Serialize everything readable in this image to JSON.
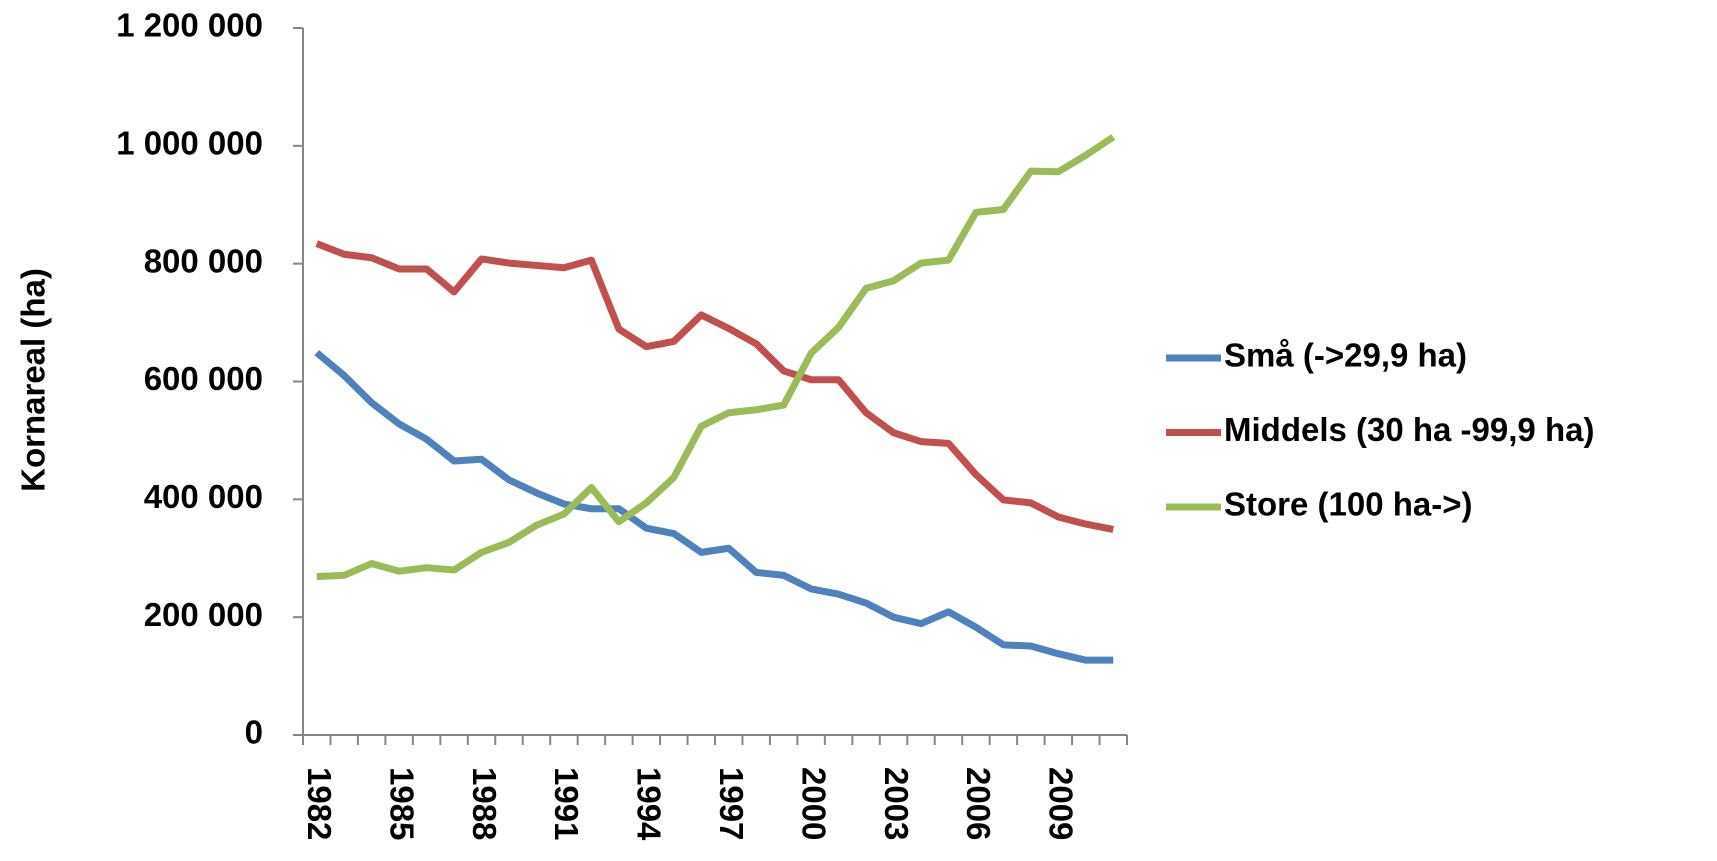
{
  "chart_data": {
    "type": "line",
    "y_label": "Kornareal (ha)",
    "categories": [
      "1982",
      null,
      null,
      "1985",
      null,
      null,
      "1988",
      null,
      null,
      "1991",
      null,
      null,
      "1994",
      null,
      null,
      "1997",
      null,
      null,
      "2000",
      null,
      null,
      "2003",
      null,
      null,
      "2006",
      null,
      null,
      "2009",
      null,
      null
    ],
    "series": [
      {
        "name": "Små (->29,9 ha)",
        "color": "#4f81bd",
        "values": [
          649000,
          610000,
          564000,
          528000,
          502000,
          465000,
          468000,
          433000,
          411000,
          392000,
          384000,
          384000,
          351000,
          342000,
          310000,
          317000,
          276000,
          271000,
          248000,
          239000,
          224000,
          200000,
          189000,
          209000,
          183000,
          153000,
          151000,
          138000,
          127000,
          127000
        ]
      },
      {
        "name": "Middels (30 ha -99,9 ha)",
        "color": "#c0504d",
        "values": [
          834000,
          816000,
          810000,
          791000,
          791000,
          752000,
          808000,
          801000,
          797000,
          793000,
          806000,
          689000,
          659000,
          668000,
          713000,
          690000,
          664000,
          618000,
          603000,
          603000,
          547000,
          513000,
          498000,
          495000,
          442000,
          399000,
          394000,
          370000,
          358000,
          349000
        ]
      },
      {
        "name": "Store (100 ha->)",
        "color": "#9bbb59",
        "values": [
          269000,
          271000,
          291000,
          278000,
          284000,
          280000,
          310000,
          327000,
          356000,
          375000,
          420000,
          362000,
          394000,
          437000,
          524000,
          547000,
          552000,
          560000,
          648000,
          692000,
          758000,
          771000,
          801000,
          806000,
          887000,
          892000,
          957000,
          956000,
          984000,
          1015000
        ]
      }
    ],
    "ylim": [
      0,
      1200000
    ],
    "yticks": [
      0,
      {
        "value": 200000,
        "label": "200 000"
      },
      {
        "value": 400000,
        "label": "400 000"
      },
      {
        "value": 600000,
        "label": "600 000"
      },
      {
        "value": 800000,
        "label": "800 000"
      },
      {
        "value": 1000000,
        "label": "1 000 000"
      },
      {
        "value": 1200000,
        "label": "1 200 000"
      }
    ],
    "legend": "right"
  }
}
